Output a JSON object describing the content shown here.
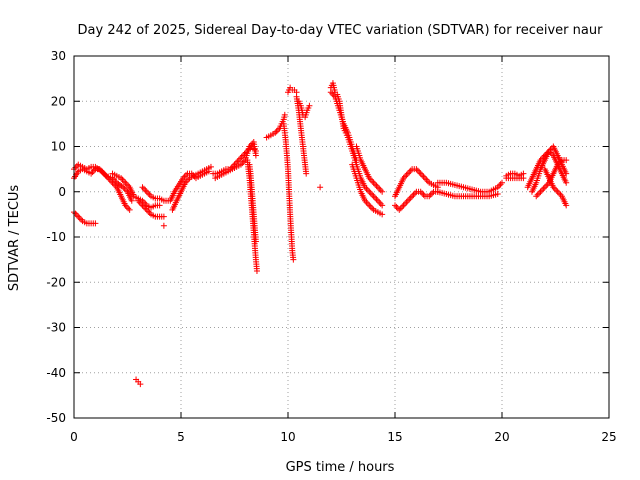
{
  "chart_data": {
    "type": "scatter",
    "title": "Day 242 of 2025, Sidereal Day-to-day VTEC variation (SDTVAR) for receiver naur",
    "xlabel": "GPS time / hours",
    "ylabel": "SDTVAR / TECUs",
    "xlim": [
      0,
      25
    ],
    "ylim": [
      -50,
      30
    ],
    "xticks": [
      0,
      5,
      10,
      15,
      20,
      25
    ],
    "yticks": [
      -50,
      -40,
      -30,
      -20,
      -10,
      0,
      10,
      20,
      30
    ],
    "grid": true,
    "marker": "+",
    "color": "#ff0000",
    "segments": [
      {
        "name": "upper-band-0-1",
        "points": [
          [
            0,
            3
          ],
          [
            0.2,
            4.5
          ],
          [
            0.4,
            5
          ],
          [
            0.6,
            4.5
          ],
          [
            0.8,
            4
          ],
          [
            1.0,
            5
          ],
          [
            1.2,
            5
          ],
          [
            1.4,
            4
          ],
          [
            1.6,
            3
          ],
          [
            1.8,
            2
          ],
          [
            2.0,
            1
          ],
          [
            2.2,
            -1
          ],
          [
            2.4,
            -3
          ],
          [
            2.6,
            -4
          ]
        ]
      },
      {
        "name": "upper-band-0-1b",
        "points": [
          [
            0,
            5
          ],
          [
            0.2,
            6
          ],
          [
            0.4,
            5.5
          ],
          [
            0.6,
            5
          ],
          [
            0.8,
            5.5
          ],
          [
            1.0,
            5.5
          ],
          [
            1.3,
            4.5
          ],
          [
            1.5,
            3.5
          ],
          [
            1.8,
            3
          ],
          [
            2.0,
            2
          ],
          [
            2.3,
            1
          ],
          [
            2.5,
            0
          ],
          [
            2.7,
            -2
          ]
        ]
      },
      {
        "name": "lower-band-0-1",
        "points": [
          [
            0,
            -4.5
          ],
          [
            0.2,
            -5.5
          ],
          [
            0.4,
            -6.5
          ],
          [
            0.6,
            -7
          ],
          [
            0.8,
            -7
          ],
          [
            1.0,
            -7
          ]
        ]
      },
      {
        "name": "band-2-3",
        "points": [
          [
            1.8,
            4
          ],
          [
            2.0,
            3.5
          ],
          [
            2.2,
            3
          ],
          [
            2.4,
            2
          ],
          [
            2.6,
            1
          ],
          [
            2.8,
            -1
          ],
          [
            3.0,
            -1.5
          ],
          [
            3.2,
            -2
          ],
          [
            3.4,
            -3
          ],
          [
            3.6,
            -3.5
          ],
          [
            3.8,
            -3
          ],
          [
            4.0,
            -3
          ]
        ]
      },
      {
        "name": "band-3-4",
        "points": [
          [
            3.0,
            -2
          ],
          [
            3.2,
            -3
          ],
          [
            3.4,
            -4
          ],
          [
            3.6,
            -5
          ],
          [
            3.8,
            -5.5
          ],
          [
            4.0,
            -5.5
          ],
          [
            4.2,
            -5.5
          ]
        ]
      },
      {
        "name": "band-3-4b",
        "points": [
          [
            3.2,
            1
          ],
          [
            3.4,
            0
          ],
          [
            3.6,
            -1
          ],
          [
            3.8,
            -1.5
          ],
          [
            4.0,
            -1.5
          ],
          [
            4.2,
            -2
          ],
          [
            4.4,
            -2
          ]
        ]
      },
      {
        "name": "outlier-4",
        "points": [
          [
            4.2,
            -7.5
          ]
        ]
      },
      {
        "name": "outlier-3",
        "points": [
          [
            2.9,
            -41.5
          ],
          [
            3.0,
            -42
          ],
          [
            3.1,
            -42.5
          ]
        ]
      },
      {
        "name": "rise-4-6",
        "points": [
          [
            4.6,
            -4
          ],
          [
            4.8,
            -2
          ],
          [
            5.0,
            0
          ],
          [
            5.2,
            2
          ],
          [
            5.4,
            3
          ],
          [
            5.6,
            3.5
          ],
          [
            5.8,
            4
          ],
          [
            6.0,
            4.5
          ],
          [
            6.2,
            5
          ],
          [
            6.4,
            5.5
          ]
        ]
      },
      {
        "name": "rise-4-6b",
        "points": [
          [
            4.5,
            -2
          ],
          [
            4.7,
            0
          ],
          [
            4.9,
            1.5
          ],
          [
            5.1,
            3
          ],
          [
            5.3,
            4
          ],
          [
            5.5,
            4
          ],
          [
            5.7,
            3
          ],
          [
            5.9,
            3.5
          ],
          [
            6.1,
            4
          ],
          [
            6.3,
            4.5
          ]
        ]
      },
      {
        "name": "band-6-8",
        "points": [
          [
            6.5,
            4
          ],
          [
            6.7,
            4
          ],
          [
            6.9,
            4.5
          ],
          [
            7.1,
            5
          ],
          [
            7.3,
            5
          ],
          [
            7.5,
            6
          ],
          [
            7.7,
            7
          ],
          [
            7.9,
            8
          ],
          [
            8.1,
            9
          ],
          [
            8.3,
            10
          ],
          [
            8.5,
            9
          ]
        ]
      },
      {
        "name": "band-6-8b",
        "points": [
          [
            6.6,
            3
          ],
          [
            6.8,
            3.5
          ],
          [
            7.0,
            4
          ],
          [
            7.2,
            4.5
          ],
          [
            7.4,
            5
          ],
          [
            7.6,
            5.5
          ],
          [
            7.8,
            6
          ],
          [
            8.0,
            7
          ],
          [
            8.2,
            10
          ],
          [
            8.4,
            11
          ],
          [
            8.5,
            8
          ]
        ]
      },
      {
        "name": "drop-8",
        "points": [
          [
            8.1,
            7
          ],
          [
            8.15,
            5
          ],
          [
            8.2,
            3
          ],
          [
            8.25,
            0
          ],
          [
            8.3,
            -3
          ],
          [
            8.35,
            -6
          ],
          [
            8.4,
            -9
          ],
          [
            8.45,
            -12
          ],
          [
            8.5,
            -15
          ],
          [
            8.55,
            -17.5
          ]
        ]
      },
      {
        "name": "drop-8b",
        "points": [
          [
            8.2,
            6
          ],
          [
            8.25,
            4
          ],
          [
            8.3,
            1
          ],
          [
            8.35,
            -2
          ],
          [
            8.4,
            -5
          ],
          [
            8.45,
            -8
          ],
          [
            8.5,
            -11
          ]
        ]
      },
      {
        "name": "climb-9",
        "points": [
          [
            9.0,
            12
          ],
          [
            9.2,
            12.5
          ],
          [
            9.4,
            13
          ],
          [
            9.6,
            14
          ],
          [
            9.7,
            15
          ],
          [
            9.8,
            16
          ],
          [
            9.85,
            17
          ]
        ]
      },
      {
        "name": "drop-10",
        "points": [
          [
            9.8,
            15
          ],
          [
            9.9,
            11
          ],
          [
            10.0,
            5
          ],
          [
            10.05,
            0
          ],
          [
            10.1,
            -5
          ],
          [
            10.15,
            -9
          ],
          [
            10.2,
            -13
          ],
          [
            10.25,
            -15
          ]
        ]
      },
      {
        "name": "peak-10",
        "points": [
          [
            10.0,
            22
          ],
          [
            10.1,
            23
          ],
          [
            10.2,
            22.5
          ],
          [
            10.3,
            22.5
          ],
          [
            10.4,
            22
          ]
        ]
      },
      {
        "name": "drop-10-11",
        "points": [
          [
            10.4,
            21
          ],
          [
            10.5,
            18
          ],
          [
            10.6,
            14
          ],
          [
            10.7,
            10
          ],
          [
            10.8,
            6
          ],
          [
            10.85,
            4
          ]
        ]
      },
      {
        "name": "band-10-11",
        "points": [
          [
            10.5,
            20
          ],
          [
            10.6,
            19
          ],
          [
            10.7,
            17
          ],
          [
            10.8,
            16.5
          ],
          [
            10.9,
            18
          ],
          [
            11.0,
            19
          ]
        ]
      },
      {
        "name": "outlier-11",
        "points": [
          [
            11.5,
            1
          ]
        ]
      },
      {
        "name": "peak-12",
        "points": [
          [
            12.0,
            23
          ],
          [
            12.1,
            24
          ],
          [
            12.2,
            22
          ],
          [
            12.3,
            21.5
          ],
          [
            12.4,
            20
          ],
          [
            12.5,
            17
          ],
          [
            12.6,
            14
          ],
          [
            12.7,
            13
          ],
          [
            12.8,
            12
          ]
        ]
      },
      {
        "name": "peak-12b",
        "points": [
          [
            12.0,
            22
          ],
          [
            12.2,
            21
          ],
          [
            12.4,
            18
          ],
          [
            12.6,
            15
          ],
          [
            12.8,
            13
          ],
          [
            13.0,
            10
          ],
          [
            13.2,
            7
          ]
        ]
      },
      {
        "name": "decline-12-15",
        "points": [
          [
            12.8,
            12
          ],
          [
            13.0,
            9
          ],
          [
            13.2,
            6
          ],
          [
            13.4,
            3
          ],
          [
            13.6,
            1
          ],
          [
            13.8,
            0
          ],
          [
            14.0,
            -1
          ],
          [
            14.2,
            -2
          ],
          [
            14.4,
            -3
          ]
        ]
      },
      {
        "name": "decline-12-15b",
        "points": [
          [
            13.0,
            6
          ],
          [
            13.2,
            3
          ],
          [
            13.4,
            0
          ],
          [
            13.6,
            -2
          ],
          [
            13.8,
            -3
          ],
          [
            14.0,
            -4
          ],
          [
            14.2,
            -4.5
          ],
          [
            14.4,
            -5
          ]
        ]
      },
      {
        "name": "decline-12-15c",
        "points": [
          [
            13.2,
            10
          ],
          [
            13.4,
            7
          ],
          [
            13.6,
            5
          ],
          [
            13.8,
            3
          ],
          [
            14.0,
            2
          ],
          [
            14.2,
            1
          ],
          [
            14.4,
            0
          ]
        ]
      },
      {
        "name": "loop-15-17",
        "points": [
          [
            15.0,
            -1
          ],
          [
            15.2,
            1
          ],
          [
            15.4,
            3
          ],
          [
            15.6,
            4
          ],
          [
            15.8,
            5
          ],
          [
            16.0,
            5
          ],
          [
            16.2,
            4
          ],
          [
            16.4,
            3
          ],
          [
            16.6,
            2
          ],
          [
            16.8,
            1.5
          ],
          [
            17.0,
            1
          ]
        ]
      },
      {
        "name": "loop-15-17b",
        "points": [
          [
            15.0,
            -3
          ],
          [
            15.2,
            -4
          ],
          [
            15.4,
            -3
          ],
          [
            15.6,
            -2
          ],
          [
            15.8,
            -1
          ],
          [
            16.0,
            0
          ],
          [
            16.2,
            0
          ],
          [
            16.4,
            -1
          ],
          [
            16.6,
            -1
          ],
          [
            16.8,
            0
          ],
          [
            17.0,
            0
          ]
        ]
      },
      {
        "name": "band-17-20",
        "points": [
          [
            17.0,
            2
          ],
          [
            17.4,
            2
          ],
          [
            17.8,
            1.5
          ],
          [
            18.2,
            1
          ],
          [
            18.6,
            0.5
          ],
          [
            19.0,
            0
          ],
          [
            19.4,
            0
          ],
          [
            19.8,
            1
          ],
          [
            20.0,
            2
          ]
        ]
      },
      {
        "name": "band-17-20b",
        "points": [
          [
            17.0,
            0
          ],
          [
            17.4,
            -0.5
          ],
          [
            17.8,
            -1
          ],
          [
            18.2,
            -1
          ],
          [
            18.6,
            -1
          ],
          [
            19.0,
            -1
          ],
          [
            19.4,
            -1
          ],
          [
            19.8,
            -0.5
          ]
        ]
      },
      {
        "name": "band-20-21",
        "points": [
          [
            20.2,
            3.5
          ],
          [
            20.4,
            4
          ],
          [
            20.6,
            4
          ],
          [
            20.8,
            3.5
          ],
          [
            21.0,
            4
          ]
        ]
      },
      {
        "name": "band-20-21b",
        "points": [
          [
            20.2,
            3
          ],
          [
            20.4,
            3
          ],
          [
            20.6,
            3
          ],
          [
            20.8,
            3
          ],
          [
            21.0,
            3
          ]
        ]
      },
      {
        "name": "rise-21-23",
        "points": [
          [
            21.2,
            1
          ],
          [
            21.4,
            3
          ],
          [
            21.6,
            5
          ],
          [
            21.8,
            7
          ],
          [
            22.0,
            8
          ],
          [
            22.2,
            9
          ],
          [
            22.4,
            10
          ],
          [
            22.6,
            8
          ],
          [
            22.8,
            6
          ],
          [
            23.0,
            4
          ]
        ]
      },
      {
        "name": "rise-21-23b",
        "points": [
          [
            21.4,
            0
          ],
          [
            21.6,
            2
          ],
          [
            21.8,
            5
          ],
          [
            22.0,
            7
          ],
          [
            22.2,
            9
          ],
          [
            22.4,
            8
          ],
          [
            22.6,
            6
          ],
          [
            22.8,
            4
          ],
          [
            23.0,
            2
          ]
        ]
      },
      {
        "name": "rise-21-23c",
        "points": [
          [
            21.6,
            -1
          ],
          [
            21.8,
            0
          ],
          [
            22.0,
            1
          ],
          [
            22.2,
            2
          ],
          [
            22.4,
            4
          ],
          [
            22.6,
            6
          ],
          [
            22.8,
            7
          ],
          [
            23.0,
            7
          ]
        ]
      },
      {
        "name": "decline-22-23",
        "points": [
          [
            22.0,
            5
          ],
          [
            22.2,
            3
          ],
          [
            22.4,
            1
          ],
          [
            22.6,
            0
          ],
          [
            22.8,
            -1
          ],
          [
            23.0,
            -3
          ]
        ]
      }
    ]
  }
}
